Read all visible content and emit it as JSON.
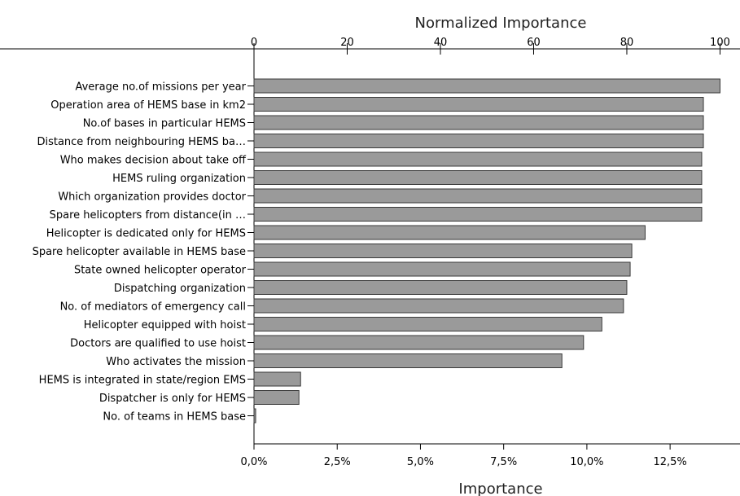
{
  "chart_data": {
    "type": "bar",
    "orientation": "horizontal",
    "categories": [
      "Average no.of missions per year",
      "Operation area of HEMS base in km2",
      "No.of bases in particular HEMS",
      "Distance from neighbouring HEMS ba…",
      "Who makes decision about take off",
      "HEMS ruling organization",
      "Which organization provides doctor",
      "Spare helicopters from distance(in …",
      "Helicopter is dedicated only for HEMS",
      "Spare helicopter available in HEMS base",
      "State owned helicopter operator",
      "Dispatching organization",
      "No. of mediators of emergency call",
      "Helicopter equipped with hoist",
      "Doctors are qualified to use hoist",
      "Who activates the mission",
      "HEMS is integrated in state/region EMS",
      "Dispatcher is only for HEMS",
      "No. of teams in HEMS base"
    ],
    "values": [
      14.0,
      13.5,
      13.5,
      13.5,
      13.45,
      13.45,
      13.45,
      13.45,
      11.75,
      11.35,
      11.3,
      11.2,
      11.1,
      10.45,
      9.9,
      9.25,
      1.4,
      1.35,
      0.05
    ],
    "xlabel": "Importance",
    "x2label": "Normalized Importance",
    "xlim": [
      0,
      14.6
    ],
    "x_ticks": [
      0,
      2.5,
      5.0,
      7.5,
      10.0,
      12.5
    ],
    "x_tick_labels": [
      "0,0%",
      "2,5%",
      "5,0%",
      "7,5%",
      "10,0%",
      "12,5%"
    ],
    "x2_ticks": [
      0,
      20,
      40,
      60,
      80,
      100
    ],
    "x2_tick_labels": [
      "0",
      "20",
      "40",
      "60",
      "80",
      "100"
    ],
    "x2_max_equals_x": 14.0,
    "grid": false,
    "legend": "none",
    "bar_color": "#9a9a9a",
    "bar_edge_color": "#3a3a3a"
  }
}
